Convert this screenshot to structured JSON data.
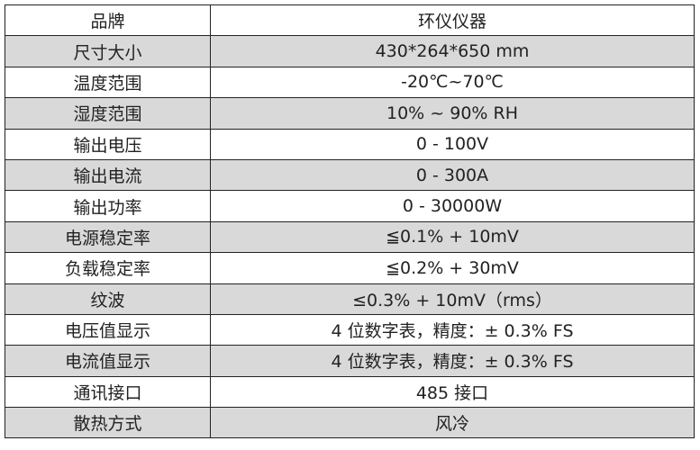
{
  "table": {
    "rows": [
      [
        "品牌",
        "环仪仪器"
      ],
      [
        "尺寸大小",
        "430*264*650 mm"
      ],
      [
        "温度范围",
        "-20℃~70℃"
      ],
      [
        "湿度范围",
        "10% ~ 90% RH"
      ],
      [
        "输出电压",
        "0 - 100V"
      ],
      [
        "输出电流",
        "0 - 300A"
      ],
      [
        "输出功率",
        "0 - 30000W"
      ],
      [
        "电源稳定率",
        "≦0.1% + 10mV"
      ],
      [
        "负载稳定率",
        "≦0.2% + 30mV"
      ],
      [
        "纹波",
        "≤0.3% + 10mV（rms）"
      ],
      [
        "电压值显示",
        "4 位数字表，精度：± 0.3% FS"
      ],
      [
        "电流值显示",
        "4 位数字表，精度：± 0.3% FS"
      ],
      [
        "通讯接口",
        "485 接口"
      ],
      [
        "散热方式",
        "风冷"
      ]
    ]
  }
}
